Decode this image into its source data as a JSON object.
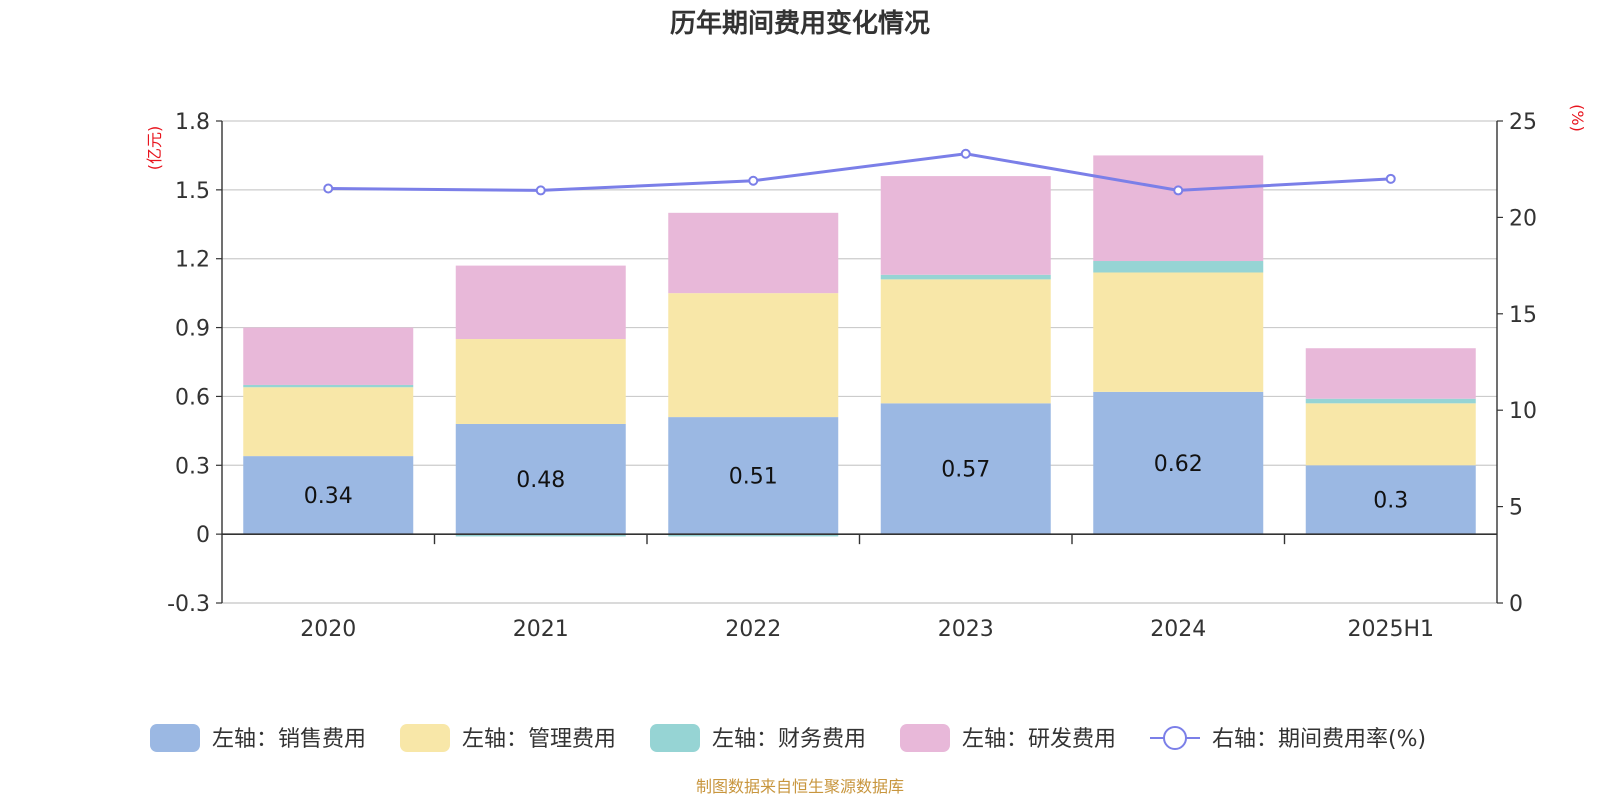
{
  "chart_data": {
    "type": "bar",
    "stacked": true,
    "title": "历年期间费用变化情况",
    "categories": [
      "2020",
      "2021",
      "2022",
      "2023",
      "2024",
      "2025H1"
    ],
    "left_axis": {
      "unit": "(亿元)",
      "ylim": [
        -0.3,
        1.8
      ],
      "ticks": [
        "-0.3",
        "0",
        "0.3",
        "0.6",
        "0.9",
        "1.2",
        "1.5",
        "1.8"
      ]
    },
    "right_axis": {
      "unit": "(%)",
      "ylim": [
        0,
        25
      ],
      "ticks": [
        "0",
        "5",
        "10",
        "15",
        "20",
        "25"
      ]
    },
    "series": [
      {
        "name": "左轴：销售费用",
        "type": "bar",
        "color": "#9bb8e3",
        "values": [
          0.34,
          0.48,
          0.51,
          0.57,
          0.62,
          0.3
        ],
        "labels": [
          "0.34",
          "0.48",
          "0.51",
          "0.57",
          "0.62",
          "0.3"
        ]
      },
      {
        "name": "左轴：管理费用",
        "type": "bar",
        "color": "#f8e7a8",
        "values": [
          0.3,
          0.37,
          0.54,
          0.54,
          0.52,
          0.27
        ]
      },
      {
        "name": "左轴：财务费用",
        "type": "bar",
        "color": "#96d4d4",
        "values": [
          0.01,
          -0.01,
          -0.01,
          0.02,
          0.05,
          0.02
        ]
      },
      {
        "name": "左轴：研发费用",
        "type": "bar",
        "color": "#e8b8d9",
        "values": [
          0.25,
          0.32,
          0.35,
          0.43,
          0.46,
          0.22
        ]
      },
      {
        "name": "右轴：期间费用率(%)",
        "type": "line",
        "axis": "right",
        "color": "#7b7fe8",
        "values": [
          21.5,
          21.4,
          21.9,
          23.3,
          21.4,
          22.0
        ]
      }
    ],
    "grid": true,
    "legend": "bottom"
  },
  "source_note": "制图数据来自恒生聚源数据库"
}
